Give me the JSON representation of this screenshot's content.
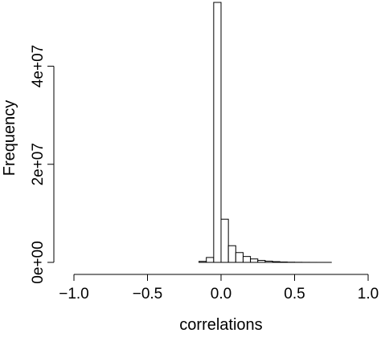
{
  "chart_data": {
    "type": "bar",
    "title": "",
    "xlabel": "correlations",
    "ylabel": "Frequency",
    "xlim": [
      -1.0,
      1.0
    ],
    "ylim": [
      0,
      53000000
    ],
    "bin_width": 0.05,
    "x_ticks": [
      {
        "value": -1.0,
        "label": "−1.0"
      },
      {
        "value": -0.5,
        "label": "−0.5"
      },
      {
        "value": 0.0,
        "label": "0.0"
      },
      {
        "value": 0.5,
        "label": "0.5"
      },
      {
        "value": 1.0,
        "label": "1.0"
      }
    ],
    "y_ticks": [
      {
        "value": 0,
        "label": "0e+00"
      },
      {
        "value": 20000000,
        "label": "2e+07"
      },
      {
        "value": 40000000,
        "label": "4e+07"
      }
    ],
    "bins": [
      {
        "start": -1.0,
        "end": -0.95,
        "value": 0
      },
      {
        "start": -0.95,
        "end": -0.9,
        "value": 0
      },
      {
        "start": -0.9,
        "end": -0.85,
        "value": 0
      },
      {
        "start": -0.85,
        "end": -0.8,
        "value": 0
      },
      {
        "start": -0.8,
        "end": -0.75,
        "value": 0
      },
      {
        "start": -0.75,
        "end": -0.7,
        "value": 0
      },
      {
        "start": -0.7,
        "end": -0.65,
        "value": 0
      },
      {
        "start": -0.65,
        "end": -0.6,
        "value": 0
      },
      {
        "start": -0.6,
        "end": -0.55,
        "value": 0
      },
      {
        "start": -0.55,
        "end": -0.5,
        "value": 0
      },
      {
        "start": -0.5,
        "end": -0.45,
        "value": 0
      },
      {
        "start": -0.45,
        "end": -0.4,
        "value": 0
      },
      {
        "start": -0.4,
        "end": -0.35,
        "value": 0
      },
      {
        "start": -0.35,
        "end": -0.3,
        "value": 0
      },
      {
        "start": -0.3,
        "end": -0.25,
        "value": 0
      },
      {
        "start": -0.25,
        "end": -0.2,
        "value": 0
      },
      {
        "start": -0.2,
        "end": -0.15,
        "value": 0
      },
      {
        "start": -0.15,
        "end": -0.1,
        "value": 200000
      },
      {
        "start": -0.1,
        "end": -0.05,
        "value": 1000000
      },
      {
        "start": -0.05,
        "end": 0.0,
        "value": 53000000
      },
      {
        "start": 0.0,
        "end": 0.05,
        "value": 8800000
      },
      {
        "start": 0.05,
        "end": 0.1,
        "value": 3400000
      },
      {
        "start": 0.1,
        "end": 0.15,
        "value": 2000000
      },
      {
        "start": 0.15,
        "end": 0.2,
        "value": 1200000
      },
      {
        "start": 0.2,
        "end": 0.25,
        "value": 700000
      },
      {
        "start": 0.25,
        "end": 0.3,
        "value": 400000
      },
      {
        "start": 0.3,
        "end": 0.35,
        "value": 250000
      },
      {
        "start": 0.35,
        "end": 0.4,
        "value": 150000
      },
      {
        "start": 0.4,
        "end": 0.45,
        "value": 80000
      },
      {
        "start": 0.45,
        "end": 0.5,
        "value": 40000
      },
      {
        "start": 0.5,
        "end": 0.55,
        "value": 20000
      },
      {
        "start": 0.55,
        "end": 0.6,
        "value": 10000
      },
      {
        "start": 0.6,
        "end": 0.65,
        "value": 5000
      },
      {
        "start": 0.65,
        "end": 0.7,
        "value": 2000
      },
      {
        "start": 0.7,
        "end": 0.75,
        "value": 1000
      },
      {
        "start": 0.75,
        "end": 0.8,
        "value": 500
      },
      {
        "start": 0.8,
        "end": 0.85,
        "value": 0
      },
      {
        "start": 0.85,
        "end": 0.9,
        "value": 0
      },
      {
        "start": 0.9,
        "end": 0.95,
        "value": 0
      },
      {
        "start": 0.95,
        "end": 1.0,
        "value": 0
      }
    ],
    "colors": {
      "bar_fill": "#ffffff",
      "bar_stroke": "#000000",
      "axis": "#000000"
    },
    "grid": false,
    "legend": "none"
  }
}
